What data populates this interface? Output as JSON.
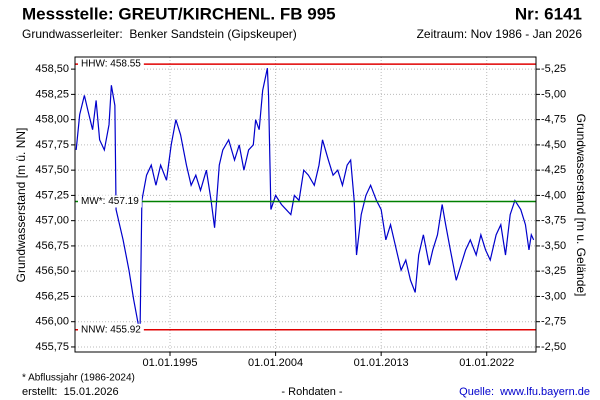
{
  "chart_data": {
    "type": "line",
    "title": "Messstelle: GREUT/KIRCHENL. FB 995",
    "number": "Nr: 6141",
    "aquifer": "Grundwasserleiter:  Benker Sandstein (Gipskeuper)",
    "period": "Zeitraum: Nov 1986 - Jan 2026",
    "y_label": "Grundwasserstand [m ü. NN]",
    "y2_label": "Grundwasserstand [m u. Gelände]",
    "color": "#0000cc",
    "grid": true,
    "x": [
      1987.0,
      1987.3,
      1987.7,
      1988.0,
      1988.4,
      1988.7,
      1989.0,
      1989.4,
      1989.8,
      1990.0,
      1990.3,
      1990.4,
      1990.7,
      1991.0,
      1991.5,
      1991.9,
      1992.3,
      1992.45,
      1992.6,
      1993.0,
      1993.4,
      1993.8,
      1994.2,
      1994.7,
      1995.1,
      1995.5,
      1995.9,
      1996.4,
      1996.8,
      1997.2,
      1997.6,
      1998.1,
      1998.5,
      1998.8,
      1999.2,
      1999.5,
      2000.0,
      2000.5,
      2000.9,
      2001.3,
      2001.7,
      2002.1,
      2002.3,
      2002.6,
      2002.9,
      2003.3,
      2003.4,
      2003.6,
      2004.0,
      2004.5,
      2004.9,
      2005.3,
      2005.6,
      2006.0,
      2006.4,
      2006.8,
      2007.3,
      2007.7,
      2008.0,
      2008.5,
      2008.9,
      2009.3,
      2009.7,
      2010.1,
      2010.4,
      2010.7,
      2010.9,
      2011.3,
      2011.7,
      2012.1,
      2012.6,
      2013.0,
      2013.4,
      2013.8,
      2014.3,
      2014.7,
      2015.1,
      2015.5,
      2015.9,
      2016.2,
      2016.6,
      2017.1,
      2017.4,
      2017.8,
      2018.2,
      2018.5,
      2018.9,
      2019.4,
      2019.8,
      2020.2,
      2020.6,
      2021.1,
      2021.5,
      2021.9,
      2022.3,
      2022.8,
      2023.2,
      2023.6,
      2024.0,
      2024.4,
      2024.9,
      2025.3,
      2025.6,
      2025.8,
      2026.0
    ],
    "values": [
      457.7,
      458.05,
      458.24,
      458.09,
      457.9,
      458.19,
      457.8,
      457.7,
      457.95,
      458.34,
      458.14,
      457.11,
      456.96,
      456.81,
      456.51,
      456.22,
      455.97,
      455.94,
      457.2,
      457.45,
      457.55,
      457.35,
      457.55,
      457.4,
      457.75,
      458.0,
      457.85,
      457.55,
      457.35,
      457.45,
      457.3,
      457.5,
      457.2,
      456.93,
      457.55,
      457.7,
      457.8,
      457.6,
      457.75,
      457.5,
      457.7,
      457.75,
      458.0,
      457.9,
      458.29,
      458.51,
      458.24,
      457.11,
      457.25,
      457.16,
      457.11,
      457.06,
      457.25,
      457.2,
      457.5,
      457.45,
      457.35,
      457.55,
      457.8,
      457.6,
      457.45,
      457.5,
      457.35,
      457.55,
      457.6,
      457.2,
      456.66,
      457.06,
      457.25,
      457.35,
      457.2,
      457.11,
      456.81,
      456.96,
      456.71,
      456.51,
      456.61,
      456.41,
      456.29,
      456.66,
      456.86,
      456.56,
      456.71,
      456.86,
      457.16,
      456.96,
      456.71,
      456.41,
      456.56,
      456.71,
      456.81,
      456.66,
      456.86,
      456.71,
      456.61,
      456.86,
      456.96,
      456.66,
      457.06,
      457.2,
      457.11,
      456.96,
      456.71,
      456.86,
      456.81
    ],
    "xlim": [
      1986.9,
      2026.2
    ],
    "xticks": [
      {
        "value": 1995,
        "label": "01.01.1995"
      },
      {
        "value": 2004,
        "label": "01.01.2004"
      },
      {
        "value": 2013,
        "label": "01.01.2013"
      },
      {
        "value": 2022,
        "label": "01.01.2022"
      }
    ],
    "ylim": [
      455.7,
      458.62
    ],
    "yticks": [
      {
        "value": 455.75,
        "label": "455,75"
      },
      {
        "value": 456.0,
        "label": "456,00"
      },
      {
        "value": 456.25,
        "label": "456,25"
      },
      {
        "value": 456.5,
        "label": "456,50"
      },
      {
        "value": 456.75,
        "label": "456,75"
      },
      {
        "value": 457.0,
        "label": "457,00"
      },
      {
        "value": 457.25,
        "label": "457,25"
      },
      {
        "value": 457.5,
        "label": "457,50"
      },
      {
        "value": 457.75,
        "label": "457,75"
      },
      {
        "value": 458.0,
        "label": "458,00"
      },
      {
        "value": 458.25,
        "label": "458,25"
      },
      {
        "value": 458.5,
        "label": "458,50"
      }
    ],
    "y2lim": [
      -2.45,
      -5.37
    ],
    "y2ticks": [
      {
        "value": -2.5,
        "label": "-2,50"
      },
      {
        "value": -2.75,
        "label": "-2,75"
      },
      {
        "value": -3.0,
        "label": "-3,00"
      },
      {
        "value": -3.25,
        "label": "-3,25"
      },
      {
        "value": -3.5,
        "label": "-3,50"
      },
      {
        "value": -3.75,
        "label": "-3,75"
      },
      {
        "value": -4.0,
        "label": "-4,00"
      },
      {
        "value": -4.25,
        "label": "-4,25"
      },
      {
        "value": -4.5,
        "label": "-4,50"
      },
      {
        "value": -4.75,
        "label": "-4,75"
      },
      {
        "value": -5.0,
        "label": "-5,00"
      },
      {
        "value": -5.25,
        "label": "-5,25"
      }
    ],
    "reference_lines": [
      {
        "label": "HHW: 458.55",
        "value": 458.55,
        "color": "#e00000"
      },
      {
        "label": "MW*: 457.19",
        "value": 457.19,
        "color": "#008000"
      },
      {
        "label": "NNW: 455.92",
        "value": 455.92,
        "color": "#e00000"
      }
    ],
    "footnote": "* Abflussjahr (1986-2024)",
    "created": "erstellt:  15.01.2026",
    "data_kind": "- Rohdaten -",
    "source": "Quelle:  www.lfu.bayern.de"
  }
}
